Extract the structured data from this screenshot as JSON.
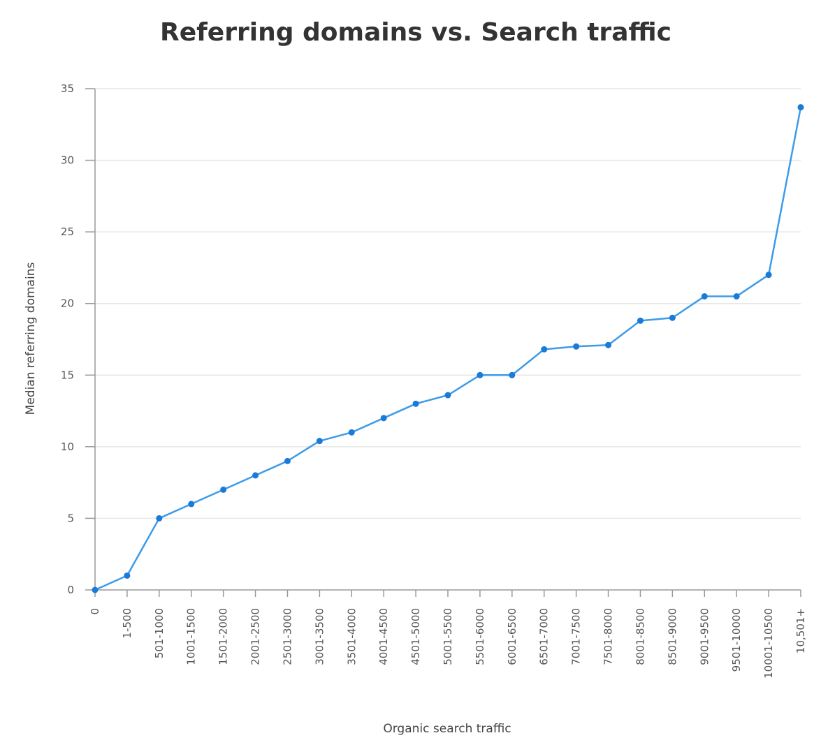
{
  "chart_data": {
    "type": "line",
    "title": "Referring domains vs. Search traffic",
    "xlabel": "Organic search traffic",
    "ylabel": "Median referring domains",
    "ylim": [
      0,
      35
    ],
    "yticks": [
      0,
      5,
      10,
      15,
      20,
      25,
      30,
      35
    ],
    "grid": true,
    "line_color": "#3d9be9",
    "point_color": "#1a7ad9",
    "categories": [
      "0",
      "1-500",
      "501-1000",
      "1001-1500",
      "1501-2000",
      "2001-2500",
      "2501-3000",
      "3001-3500",
      "3501-4000",
      "4001-4500",
      "4501-5000",
      "5001-5500",
      "5501-6000",
      "6001-6500",
      "6501-7000",
      "7001-7500",
      "7501-8000",
      "8001-8500",
      "8501-9000",
      "9001-9500",
      "9501-10000",
      "10001-10500",
      "10,501+"
    ],
    "values": [
      0,
      1,
      5,
      6,
      7,
      8,
      9,
      10.4,
      11,
      12,
      13,
      13.6,
      15,
      15,
      16.8,
      17,
      17.1,
      18.8,
      19,
      20.5,
      20.5,
      22,
      33.7
    ]
  }
}
